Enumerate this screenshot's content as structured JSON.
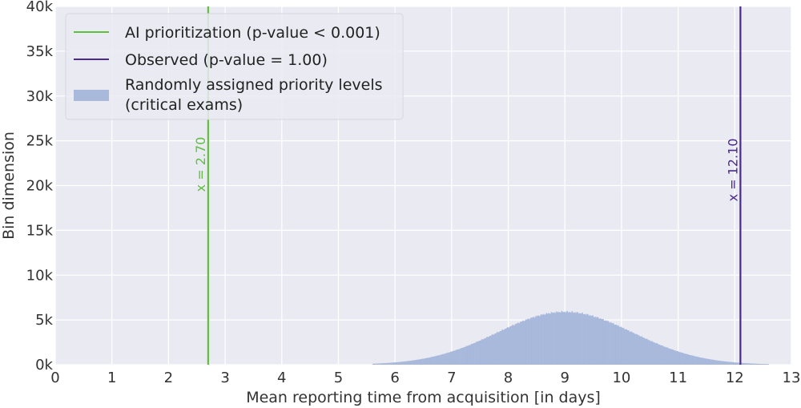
{
  "chart_data": {
    "type": "histogram",
    "xlabel": "Mean reporting time from acquisition [in days]",
    "ylabel": "Bin dimension",
    "xlim": [
      0,
      13
    ],
    "ylim": [
      0,
      40000
    ],
    "x_ticks": [
      "0",
      "1",
      "2",
      "3",
      "4",
      "5",
      "6",
      "7",
      "8",
      "9",
      "10",
      "11",
      "12",
      "13"
    ],
    "y_ticks": [
      "0k",
      "5k",
      "10k",
      "15k",
      "20k",
      "25k",
      "30k",
      "35k",
      "40k"
    ],
    "grid": true,
    "background_color": "#eaeaf2",
    "legend_placement": "top-left",
    "legend": [
      "AI prioritization (p-value < 0.001)",
      "Observed (p-value = 1.00)",
      [
        "Randomly assigned priority levels",
        "(critical exams)"
      ]
    ],
    "series": [
      {
        "kind": "vline",
        "x": 2.7,
        "label": "x = 2.70",
        "color": "#5fbf40"
      },
      {
        "kind": "vline",
        "x": 12.1,
        "label": "x = 12.10",
        "color": "#4b2a8a"
      },
      {
        "kind": "histogram",
        "color": "#a8b9dc",
        "distribution": {
          "mean": 9.0,
          "std": 1.2,
          "peak": 5900,
          "min_x": 5.6,
          "max_x": 12.6,
          "bins": 420
        }
      }
    ]
  }
}
